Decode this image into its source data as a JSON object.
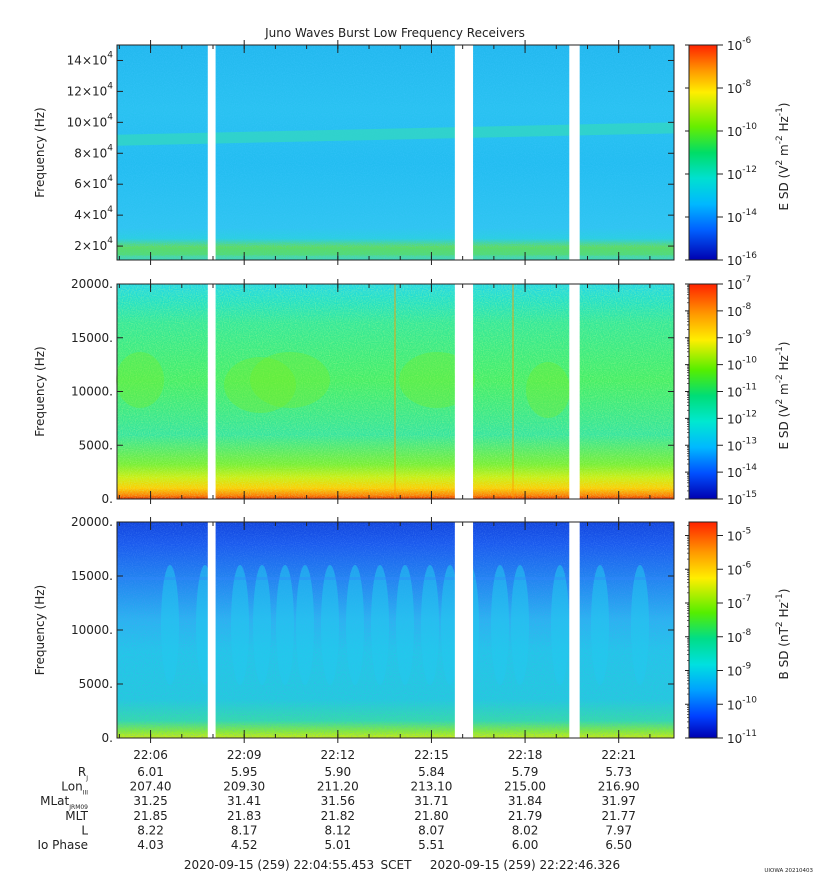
{
  "chart_data": {
    "type": "heatmap",
    "title": "Juno Waves Burst Low Frequency Receivers",
    "x_range": [
      "22:04:55.453",
      "22:22:46.326"
    ],
    "x_ticks": [
      "22:06",
      "22:09",
      "22:12",
      "22:15",
      "22:18",
      "22:21"
    ],
    "data_gaps": [
      [
        "22:07:50",
        "22:08:05"
      ],
      [
        "22:15:45",
        "22:16:20"
      ],
      [
        "22:19:25",
        "22:19:45"
      ]
    ],
    "panels": [
      {
        "name": "top",
        "ylabel": "Frequency (Hz)",
        "ylim": [
          11000,
          150000
        ],
        "yticks": [
          {
            "value": 20000,
            "base": "2×10",
            "exp": "4"
          },
          {
            "value": 40000,
            "base": "4×10",
            "exp": "4"
          },
          {
            "value": 60000,
            "base": "6×10",
            "exp": "4"
          },
          {
            "value": 80000,
            "base": "8×10",
            "exp": "4"
          },
          {
            "value": 100000,
            "base": "10×10",
            "exp": "4"
          },
          {
            "value": 120000,
            "base": "12×10",
            "exp": "4"
          },
          {
            "value": 140000,
            "base": "14×10",
            "exp": "4"
          }
        ],
        "colorbar_label": "E SD (V",
        "colorbar_label_sup": "2",
        "colorbar_label_mid": " m",
        "colorbar_label_sup2": "-2",
        "colorbar_label_end": " Hz",
        "colorbar_label_sup3": "-1",
        "colorbar_label_close": ")",
        "colorbar_ticks": [
          "-6",
          "-8",
          "-10",
          "-12",
          "-14",
          "-16"
        ],
        "colorbar_range": [
          -16,
          -6
        ],
        "colorbar_minor": false,
        "palette": "top"
      },
      {
        "name": "middle",
        "ylabel": "Frequency (Hz)",
        "ylim": [
          0,
          20000
        ],
        "yticks": [
          {
            "value": 0,
            "base": "0.",
            "exp": ""
          },
          {
            "value": 5000,
            "base": "5000.",
            "exp": ""
          },
          {
            "value": 10000,
            "base": "10000.",
            "exp": ""
          },
          {
            "value": 15000,
            "base": "15000.",
            "exp": ""
          },
          {
            "value": 20000,
            "base": "20000.",
            "exp": ""
          }
        ],
        "colorbar_label": "E SD (V",
        "colorbar_label_sup": "2",
        "colorbar_label_mid": " m",
        "colorbar_label_sup2": "-2",
        "colorbar_label_end": " Hz",
        "colorbar_label_sup3": "-1",
        "colorbar_label_close": ")",
        "colorbar_ticks": [
          "-7",
          "-8",
          "-9",
          "-10",
          "-11",
          "-12",
          "-13",
          "-14",
          "-15"
        ],
        "colorbar_range": [
          -15,
          -7
        ],
        "colorbar_minor": true,
        "palette": "middle"
      },
      {
        "name": "bottom",
        "ylabel": "Frequency (Hz)",
        "ylim": [
          0,
          20000
        ],
        "yticks": [
          {
            "value": 0,
            "base": "0.",
            "exp": ""
          },
          {
            "value": 5000,
            "base": "5000.",
            "exp": ""
          },
          {
            "value": 10000,
            "base": "10000.",
            "exp": ""
          },
          {
            "value": 15000,
            "base": "15000.",
            "exp": ""
          },
          {
            "value": 20000,
            "base": "20000.",
            "exp": ""
          }
        ],
        "colorbar_label": "B SD (nT",
        "colorbar_label_sup": "2",
        "colorbar_label_mid": "",
        "colorbar_label_sup2": "",
        "colorbar_label_end": " Hz",
        "colorbar_label_sup3": "-1",
        "colorbar_label_close": ")",
        "colorbar_ticks": [
          "-5",
          "-6",
          "-7",
          "-8",
          "-9",
          "-10",
          "-11"
        ],
        "colorbar_range": [
          -11,
          -4.6
        ],
        "colorbar_minor": true,
        "palette": "bottom"
      }
    ],
    "ephemeris": {
      "rows": [
        {
          "label": "R",
          "sub": "J",
          "values": [
            "6.01",
            "5.95",
            "5.90",
            "5.84",
            "5.79",
            "5.73"
          ]
        },
        {
          "label": "Lon",
          "sub": "III",
          "values": [
            "207.40",
            "209.30",
            "211.20",
            "213.10",
            "215.00",
            "216.90"
          ]
        },
        {
          "label": "MLat",
          "sub": "JRM09",
          "values": [
            "31.25",
            "31.41",
            "31.56",
            "31.71",
            "31.84",
            "31.97"
          ]
        },
        {
          "label": "MLT",
          "sub": "",
          "values": [
            "21.85",
            "21.83",
            "21.82",
            "21.80",
            "21.79",
            "21.77"
          ]
        },
        {
          "label": "L",
          "sub": "",
          "values": [
            "8.22",
            "8.17",
            "8.12",
            "8.07",
            "8.02",
            "7.97"
          ]
        },
        {
          "label": "Io Phase",
          "sub": "",
          "values": [
            "4.03",
            "4.52",
            "5.01",
            "5.51",
            "6.00",
            "6.50"
          ]
        }
      ]
    },
    "footer": {
      "start": "2020-09-15 (259) 22:04:55.453",
      "scet": "SCET",
      "end": "2020-09-15 (259) 22:22:46.326"
    },
    "credit": "UIOWA 20210403",
    "colors": {
      "axis": "#222222",
      "text": "#222222",
      "gap": "#ffffff"
    }
  }
}
